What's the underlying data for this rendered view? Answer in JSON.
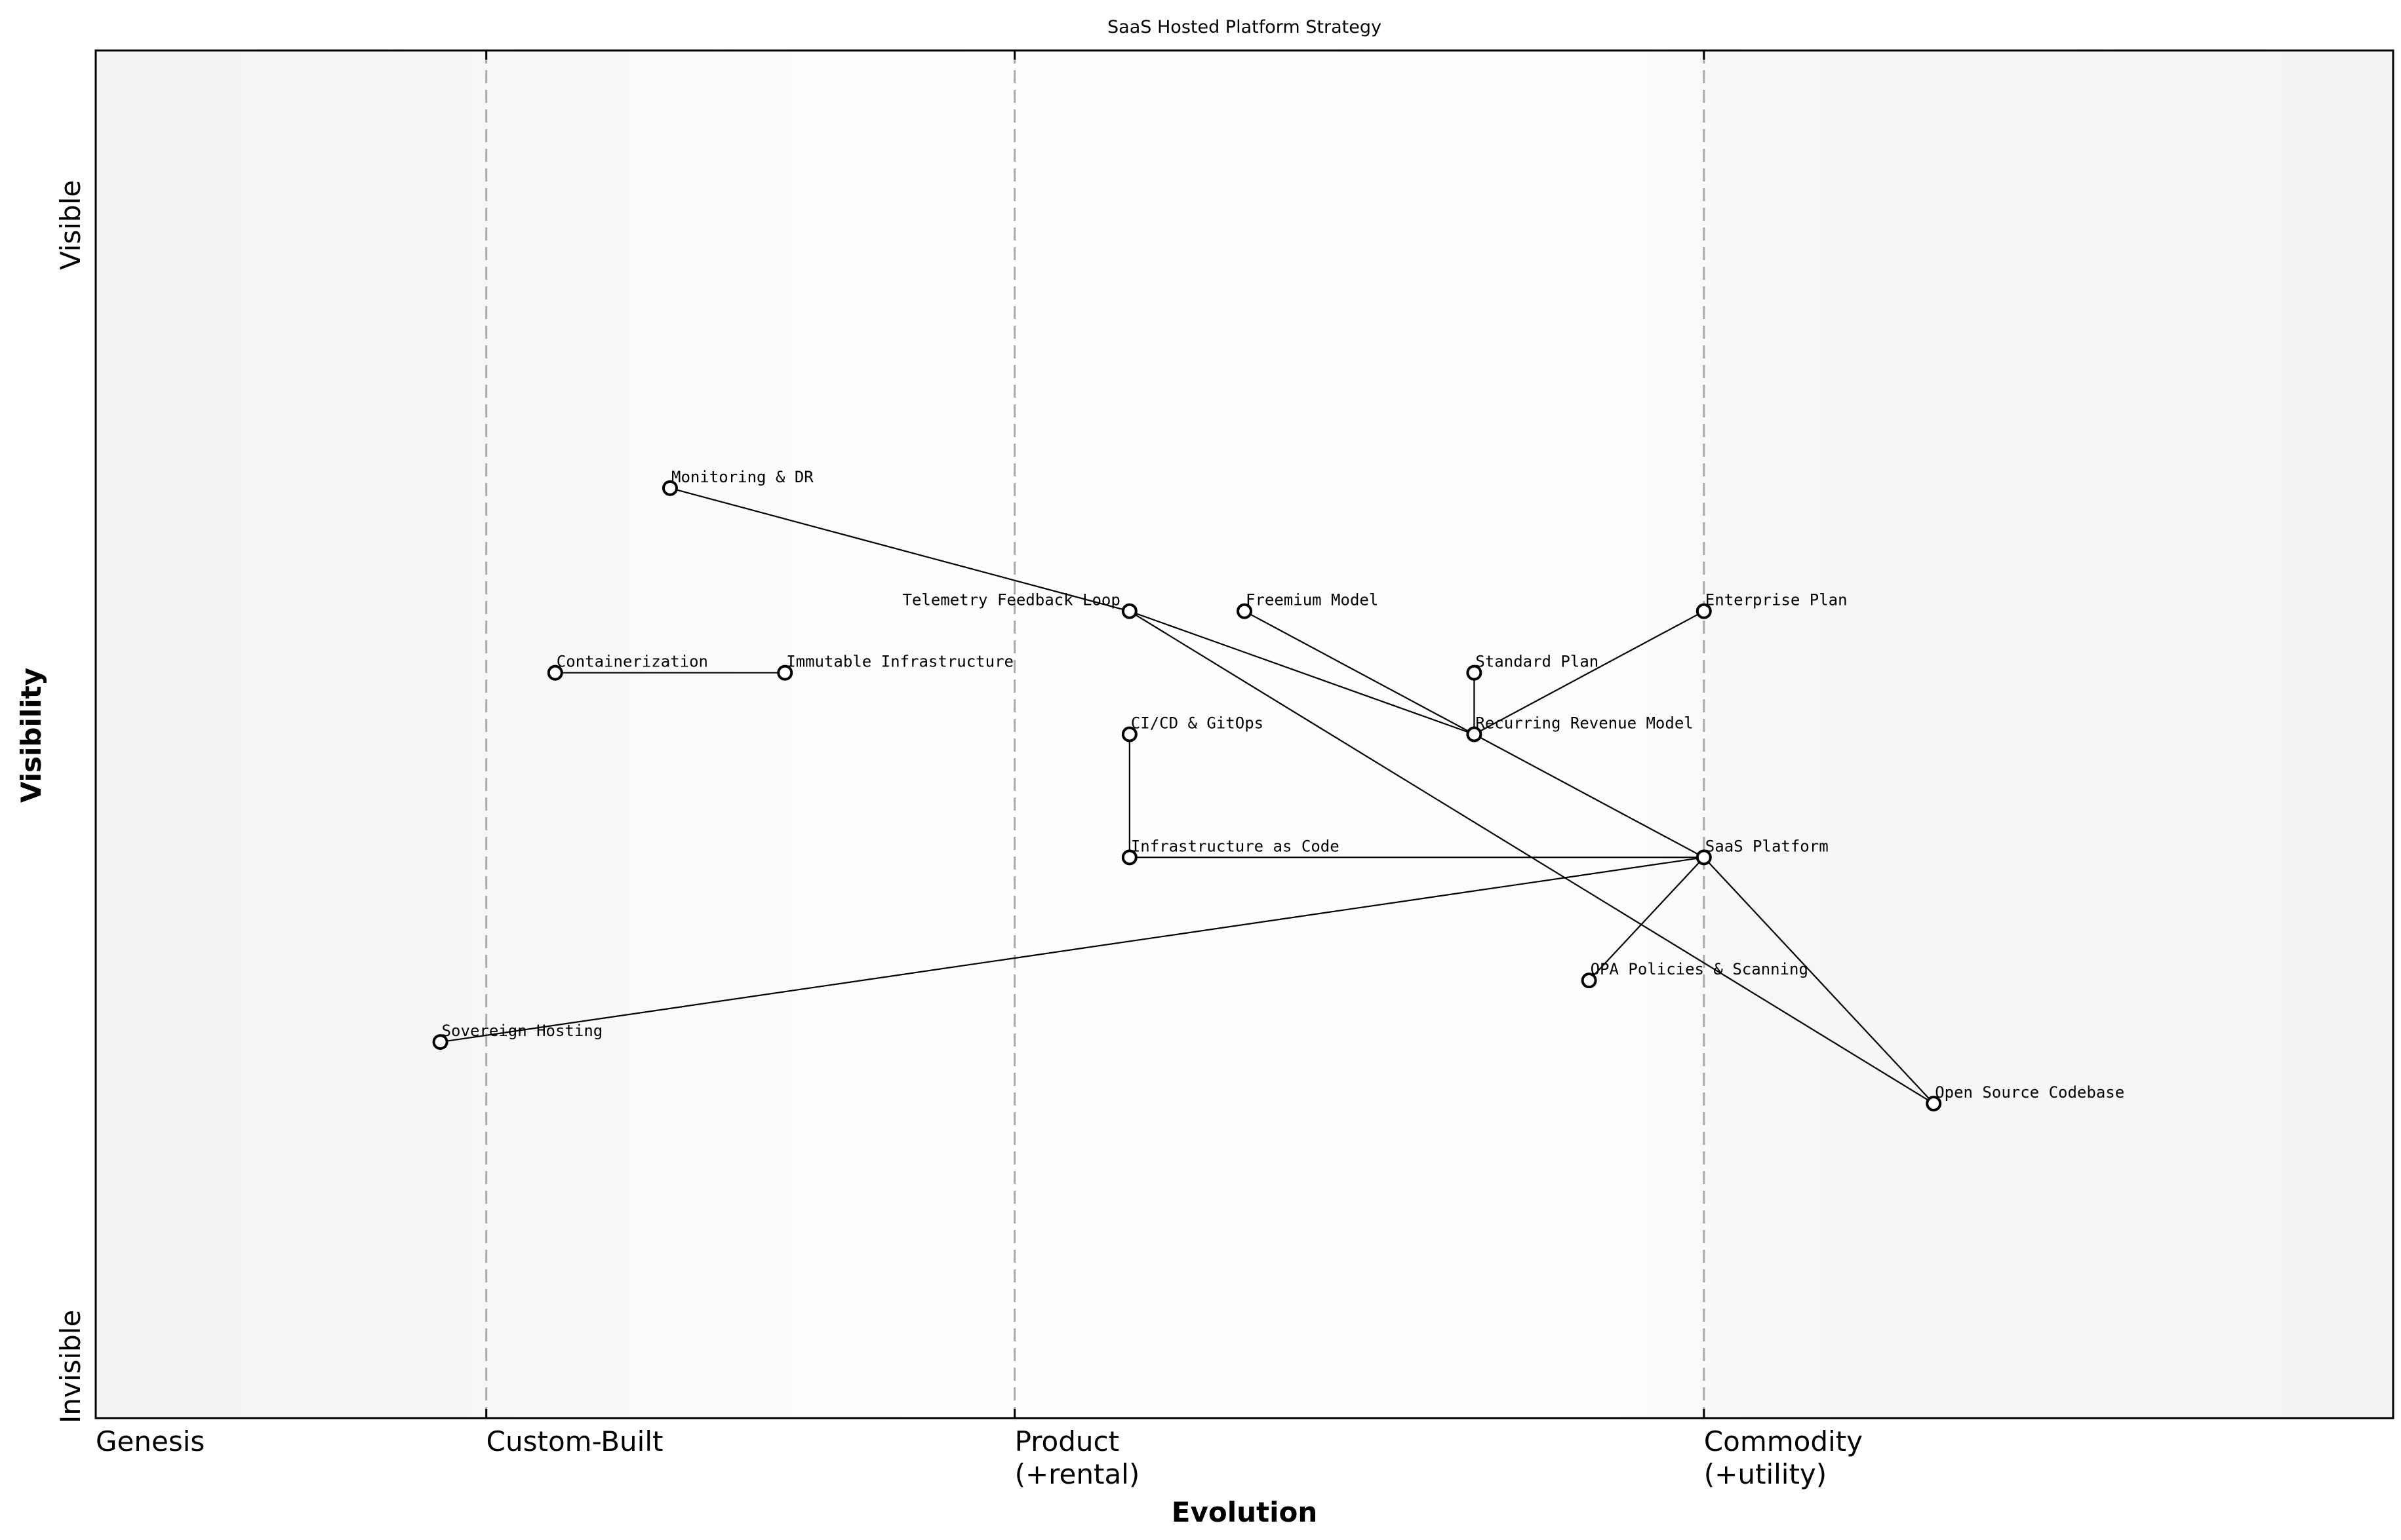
{
  "chart_data": {
    "type": "wardley-map",
    "title": "SaaS Hosted Platform Strategy",
    "xlabel": "Evolution",
    "ylabel": "Visibility",
    "xlim": [
      0,
      1
    ],
    "ylim": [
      0,
      1
    ],
    "grid": false,
    "y_tick_labels": {
      "top": "Visible",
      "bottom": "Invisible"
    },
    "stages": [
      {
        "label": "Genesis",
        "x": 0.0,
        "divider": false
      },
      {
        "label": "Custom-Built",
        "x": 0.17,
        "divider": true
      },
      {
        "label": "Product\n(+rental)",
        "x": 0.4,
        "divider": true
      },
      {
        "label": "Commodity\n(+utility)",
        "x": 0.7,
        "divider": true
      }
    ],
    "components": [
      {
        "name": "Monitoring & DR",
        "x": 0.25,
        "y": 0.68
      },
      {
        "name": "Telemetry Feedback Loop",
        "x": 0.45,
        "y": 0.59
      },
      {
        "name": "Freemium Model",
        "x": 0.5,
        "y": 0.59
      },
      {
        "name": "Enterprise Plan",
        "x": 0.7,
        "y": 0.59
      },
      {
        "name": "Containerization",
        "x": 0.2,
        "y": 0.545
      },
      {
        "name": "Immutable Infrastructure",
        "x": 0.3,
        "y": 0.545
      },
      {
        "name": "Standard Plan",
        "x": 0.6,
        "y": 0.545
      },
      {
        "name": "CI/CD & GitOps",
        "x": 0.45,
        "y": 0.5
      },
      {
        "name": "Recurring Revenue Model",
        "x": 0.6,
        "y": 0.5
      },
      {
        "name": "Infrastructure as Code",
        "x": 0.45,
        "y": 0.41
      },
      {
        "name": "SaaS Platform",
        "x": 0.7,
        "y": 0.41
      },
      {
        "name": "OPA Policies & Scanning",
        "x": 0.65,
        "y": 0.32
      },
      {
        "name": "Sovereign Hosting",
        "x": 0.15,
        "y": 0.275
      },
      {
        "name": "Open Source Codebase",
        "x": 0.8,
        "y": 0.23
      }
    ],
    "links": [
      [
        "Monitoring & DR",
        "Telemetry Feedback Loop"
      ],
      [
        "Telemetry Feedback Loop",
        "Recurring Revenue Model"
      ],
      [
        "Telemetry Feedback Loop",
        "Open Source Codebase"
      ],
      [
        "Freemium Model",
        "Recurring Revenue Model"
      ],
      [
        "Containerization",
        "Immutable Infrastructure"
      ],
      [
        "Standard Plan",
        "Recurring Revenue Model"
      ],
      [
        "Enterprise Plan",
        "Recurring Revenue Model"
      ],
      [
        "Recurring Revenue Model",
        "SaaS Platform"
      ],
      [
        "CI/CD & GitOps",
        "Infrastructure as Code"
      ],
      [
        "Infrastructure as Code",
        "SaaS Platform"
      ],
      [
        "SaaS Platform",
        "OPA Policies & Scanning"
      ],
      [
        "SaaS Platform",
        "Sovereign Hosting"
      ],
      [
        "SaaS Platform",
        "Open Source Codebase"
      ]
    ],
    "colors": {
      "node_fill": "#ffffff",
      "node_stroke": "#000000",
      "link": "#000000",
      "divider": "#aaaaaa",
      "background_edge": "#f4f4f4",
      "background_center": "#fefefe"
    }
  }
}
